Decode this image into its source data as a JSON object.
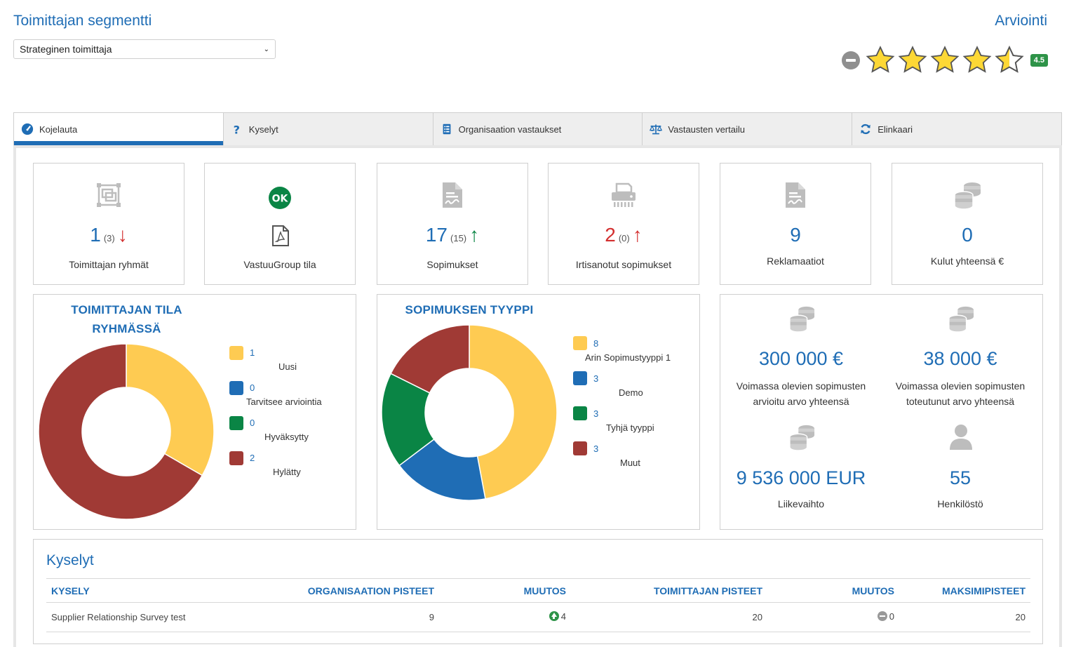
{
  "header": {
    "segment_title": "Toimittajan segmentti",
    "segment_value": "Strateginen toimittaja",
    "rating_title": "Arviointi",
    "rating_value": 4.5,
    "rating_badge": "4.5"
  },
  "tabs": [
    {
      "label": "Kojelauta",
      "icon": "dashboard-icon",
      "active": true
    },
    {
      "label": "Kyselyt",
      "icon": "question-icon",
      "active": false
    },
    {
      "label": "Organisaation vastaukset",
      "icon": "list-icon",
      "active": false
    },
    {
      "label": "Vastausten vertailu",
      "icon": "scale-icon",
      "active": false
    },
    {
      "label": "Elinkaari",
      "icon": "refresh-icon",
      "active": false
    }
  ],
  "kpis": [
    {
      "label": "Toimittajan ryhmät",
      "value": "1",
      "sub": "(3)",
      "trend": "down",
      "icon": "group-icon"
    },
    {
      "label": "VastuuGroup tila",
      "status": "OK",
      "icon": "pdf-icon"
    },
    {
      "label": "Sopimukset",
      "value": "17",
      "sub": "(15)",
      "trend": "up-green",
      "icon": "contract-icon"
    },
    {
      "label": "Irtisanotut sopimukset",
      "value": "2",
      "sub": "(0)",
      "trend": "up-red",
      "icon": "shredder-icon"
    },
    {
      "label": "Reklamaatiot",
      "value": "9",
      "icon": "document-icon"
    },
    {
      "label": "Kulut yhteensä €",
      "value": "0",
      "icon": "coins-icon"
    }
  ],
  "chart_data": [
    {
      "type": "pie",
      "title": "TOIMITTAJAN TILA RYHMÄSSÄ",
      "title_line1": "TOIMITTAJAN TILA",
      "title_line2": "RYHMÄSSÄ",
      "categories": [
        "Uusi",
        "Tarvitsee arviointia",
        "Hyväksytty",
        "Hylätty"
      ],
      "values": [
        1,
        0,
        0,
        2
      ],
      "colors": [
        "#fecb52",
        "#1f6db5",
        "#0a8545",
        "#a03a35"
      ]
    },
    {
      "type": "pie",
      "title": "SOPIMUKSEN TYYPPI",
      "categories": [
        "Arin Sopimustyyppi 1",
        "Demo",
        "Tyhjä tyyppi",
        "Muut"
      ],
      "values": [
        8,
        3,
        3,
        3
      ],
      "colors": [
        "#fecb52",
        "#1f6db5",
        "#0a8545",
        "#a03a35"
      ]
    }
  ],
  "money": {
    "contract_estimated_value": "300 000 €",
    "contract_estimated_label_1": "Voimassa olevien sopimusten",
    "contract_estimated_label_2": "arvioitu arvo yhteensä",
    "contract_realized_value": "38 000 €",
    "contract_realized_label_1": "Voimassa olevien sopimusten",
    "contract_realized_label_2": "toteutunut arvo yhteensä",
    "revenue_value": "9 536 000 EUR",
    "revenue_label": "Liikevaihto",
    "staff_value": "55",
    "staff_label": "Henkilöstö"
  },
  "surveys": {
    "title": "Kyselyt",
    "columns": [
      "KYSELY",
      "ORGANISAATION PISTEET",
      "MUUTOS",
      "TOIMITTAJAN PISTEET",
      "MUUTOS",
      "MAKSIMIPISTEET"
    ],
    "rows": [
      {
        "name": "Supplier Relationship Survey test",
        "org_points": "9",
        "org_change": "4",
        "supplier_points": "20",
        "supplier_change": "0",
        "max_points": "20"
      }
    ]
  }
}
